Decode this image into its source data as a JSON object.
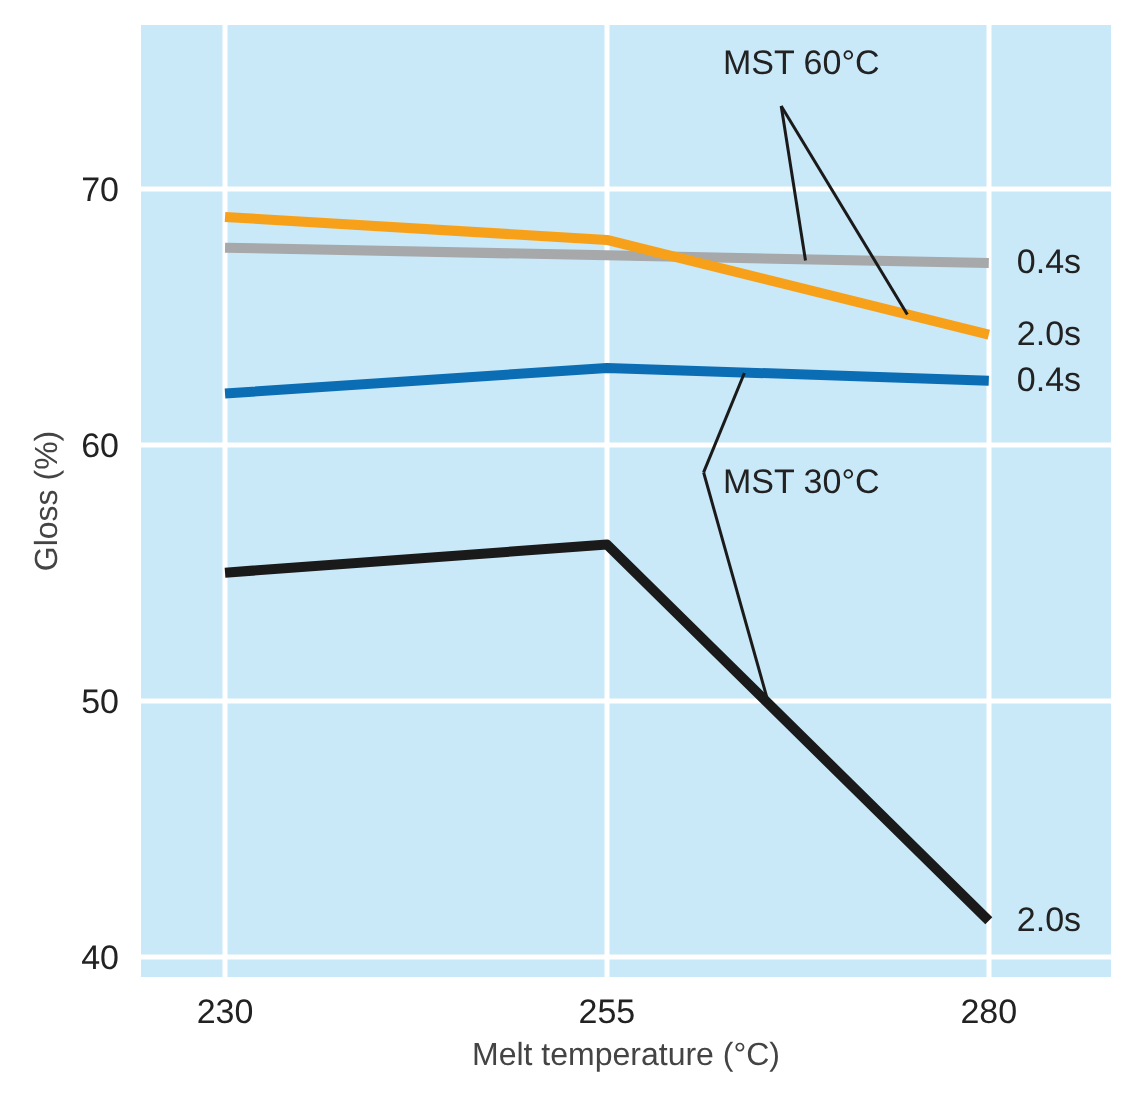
{
  "chart_data": {
    "type": "line",
    "xlabel": "Melt temperature (°C)",
    "ylabel": "Gloss (%)",
    "x": [
      230,
      255,
      280
    ],
    "xlim": [
      224.5,
      288
    ],
    "ylim": [
      39.2,
      76.4
    ],
    "xticks": [
      230,
      255,
      280
    ],
    "yticks": [
      40,
      50,
      60,
      70
    ],
    "grid": true,
    "legend": false,
    "marker": "none",
    "line_style": "solid",
    "series": [
      {
        "name": "0.4s",
        "color": "#a6a8aa",
        "values": [
          67.7,
          67.4,
          67.1
        ]
      },
      {
        "name": "2.0s",
        "color": "#f7a11a",
        "values": [
          68.9,
          68.0,
          64.3
        ]
      },
      {
        "name": "0.4s",
        "color": "#0b6db3",
        "values": [
          62.0,
          63.0,
          62.5
        ]
      },
      {
        "name": "2.0s",
        "color": "#1a1a1a",
        "values": [
          55.0,
          56.1,
          41.4
        ]
      }
    ],
    "annotations": [
      {
        "text": "MST 60°C",
        "x": 268,
        "y": 67.2
      },
      {
        "text": "MST 30°C",
        "x": 264,
        "y": 62.8
      }
    ]
  }
}
